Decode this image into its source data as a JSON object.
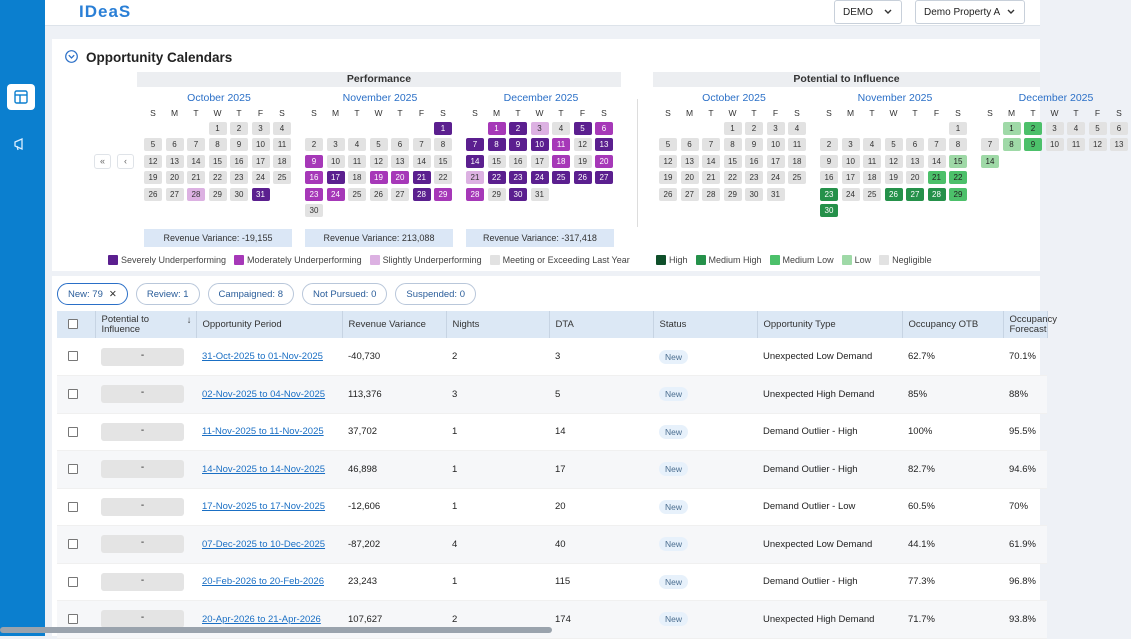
{
  "app": {
    "logo": "IDeaS",
    "env": "DEMO",
    "property": "Demo Property A"
  },
  "section_title": "Opportunity Calendars",
  "performance": {
    "title": "Performance",
    "months": [
      {
        "name": "October 2025",
        "start": 3,
        "days": 31,
        "levels": {
          "28": "lu",
          "31": "su"
        }
      },
      {
        "name": "November 2025",
        "start": 6,
        "days": 30,
        "levels": {
          "1": "su",
          "9": "mu",
          "16": "mu",
          "17": "su",
          "19": "mu",
          "20": "mu",
          "21": "su",
          "23": "mu",
          "24": "mu",
          "28": "su",
          "29": "mu"
        }
      },
      {
        "name": "December 2025",
        "start": 1,
        "days": 31,
        "levels": {
          "1": "mu",
          "2": "su",
          "3": "lu",
          "5": "su",
          "6": "mu",
          "7": "su",
          "8": "su",
          "9": "su",
          "10": "su",
          "11": "mu",
          "13": "su",
          "14": "su",
          "18": "mu",
          "20": "mu",
          "21": "lu",
          "22": "su",
          "23": "su",
          "24": "su",
          "25": "su",
          "26": "su",
          "27": "su",
          "28": "mu",
          "30": "su"
        }
      }
    ],
    "variances": [
      "Revenue Variance: -19,155",
      "Revenue Variance: 213,088",
      "Revenue Variance: -317,418"
    ],
    "legend": [
      {
        "label": "Severely Underperforming",
        "color": "#5b1f8f"
      },
      {
        "label": "Moderately Underperforming",
        "color": "#a638b8"
      },
      {
        "label": "Slightly Underperforming",
        "color": "#dcb1e2"
      },
      {
        "label": "Meeting or Exceeding Last Year",
        "color": "#e2e2e2"
      }
    ]
  },
  "potential": {
    "title": "Potential to Influence",
    "months": [
      {
        "name": "October 2025",
        "start": 3,
        "days": 31,
        "levels": {}
      },
      {
        "name": "November 2025",
        "start": 6,
        "days": 30,
        "levels": {
          "15": "lo",
          "21": "ml",
          "22": "ml",
          "23": "mh",
          "26": "mh",
          "27": "mh",
          "28": "mh",
          "29": "ml",
          "30": "mh"
        }
      },
      {
        "name": "December 2025",
        "start": 1,
        "days": 14,
        "levels": {
          "1": "lo",
          "2": "ml",
          "8": "lo",
          "9": "ml",
          "14": "lo"
        }
      }
    ],
    "legend": [
      {
        "label": "High",
        "color": "#0f4f2a"
      },
      {
        "label": "Medium High",
        "color": "#25914a"
      },
      {
        "label": "Medium Low",
        "color": "#4cc06a"
      },
      {
        "label": "Low",
        "color": "#9fd9a7"
      },
      {
        "label": "Negligible",
        "color": "#e2e2e2"
      }
    ]
  },
  "day_headers": [
    "S",
    "M",
    "T",
    "W",
    "T",
    "F",
    "S"
  ],
  "chips": [
    "New: 79",
    "Review: 1",
    "Campaigned: 8",
    "Not Pursued: 0",
    "Suspended: 0"
  ],
  "table": {
    "headers": [
      "Potential to Influence",
      "Opportunity Period",
      "Revenue Variance",
      "Nights",
      "DTA",
      "Status",
      "Opportunity Type",
      "Occupancy OTB",
      "Occupancy Forecast"
    ],
    "rows": [
      [
        "-",
        "31-Oct-2025 to 01-Nov-2025",
        "-40,730",
        "2",
        "3",
        "New",
        "Unexpected Low Demand",
        "62.7%",
        "70.1%"
      ],
      [
        "-",
        "02-Nov-2025 to 04-Nov-2025",
        "113,376",
        "3",
        "5",
        "New",
        "Unexpected High Demand",
        "85%",
        "88%"
      ],
      [
        "-",
        "11-Nov-2025 to 11-Nov-2025",
        "37,702",
        "1",
        "14",
        "New",
        "Demand Outlier - High",
        "100%",
        "95.5%"
      ],
      [
        "-",
        "14-Nov-2025 to 14-Nov-2025",
        "46,898",
        "1",
        "17",
        "New",
        "Demand Outlier - High",
        "82.7%",
        "94.6%"
      ],
      [
        "-",
        "17-Nov-2025 to 17-Nov-2025",
        "-12,606",
        "1",
        "20",
        "New",
        "Demand Outlier - Low",
        "60.5%",
        "70%"
      ],
      [
        "-",
        "07-Dec-2025 to 10-Dec-2025",
        "-87,202",
        "4",
        "40",
        "New",
        "Unexpected Low Demand",
        "44.1%",
        "61.9%"
      ],
      [
        "-",
        "20-Feb-2026 to 20-Feb-2026",
        "23,243",
        "1",
        "115",
        "New",
        "Demand Outlier - High",
        "77.3%",
        "96.8%"
      ],
      [
        "-",
        "20-Apr-2026 to 21-Apr-2026",
        "107,627",
        "2",
        "174",
        "New",
        "Unexpected High Demand",
        "71.7%",
        "93.8%"
      ]
    ]
  }
}
